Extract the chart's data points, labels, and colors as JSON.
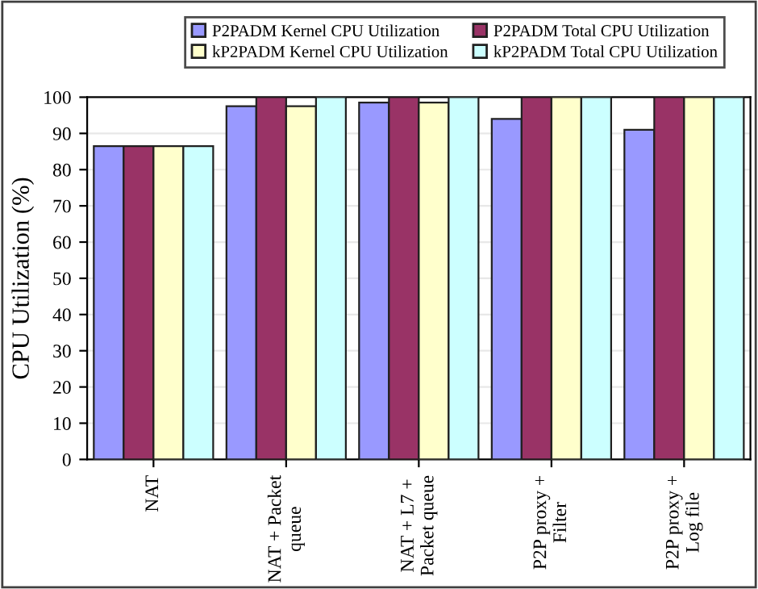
{
  "chart_data": {
    "type": "bar",
    "ylabel": "CPU Utilization (%)",
    "categories": [
      "NAT",
      "NAT + Packet\nqueue",
      "NAT + L7 +\nPacket queue",
      "P2P proxy +\nFilter",
      "P2P proxy +\nLog file"
    ],
    "series": [
      {
        "name": "P2PADM Kernel CPU Utilization",
        "color": "#9999ff",
        "values": [
          86.5,
          97.5,
          98.5,
          94,
          91
        ]
      },
      {
        "name": "P2PADM Total CPU Utilization",
        "color": "#993366",
        "values": [
          86.5,
          100,
          100,
          100,
          100
        ]
      },
      {
        "name": "kP2PADM Kernel CPU Utilization",
        "color": "#ffffcc",
        "values": [
          86.5,
          97.5,
          98.5,
          100,
          100
        ]
      },
      {
        "name": "kP2PADM Total CPU Utilization",
        "color": "#ccffff",
        "values": [
          86.5,
          100,
          100,
          100,
          100
        ]
      }
    ],
    "ylim": [
      0,
      100
    ],
    "yticks": [
      0,
      10,
      20,
      30,
      40,
      50,
      60,
      70,
      80,
      90,
      100
    ],
    "grid": "y",
    "legend": "top"
  }
}
